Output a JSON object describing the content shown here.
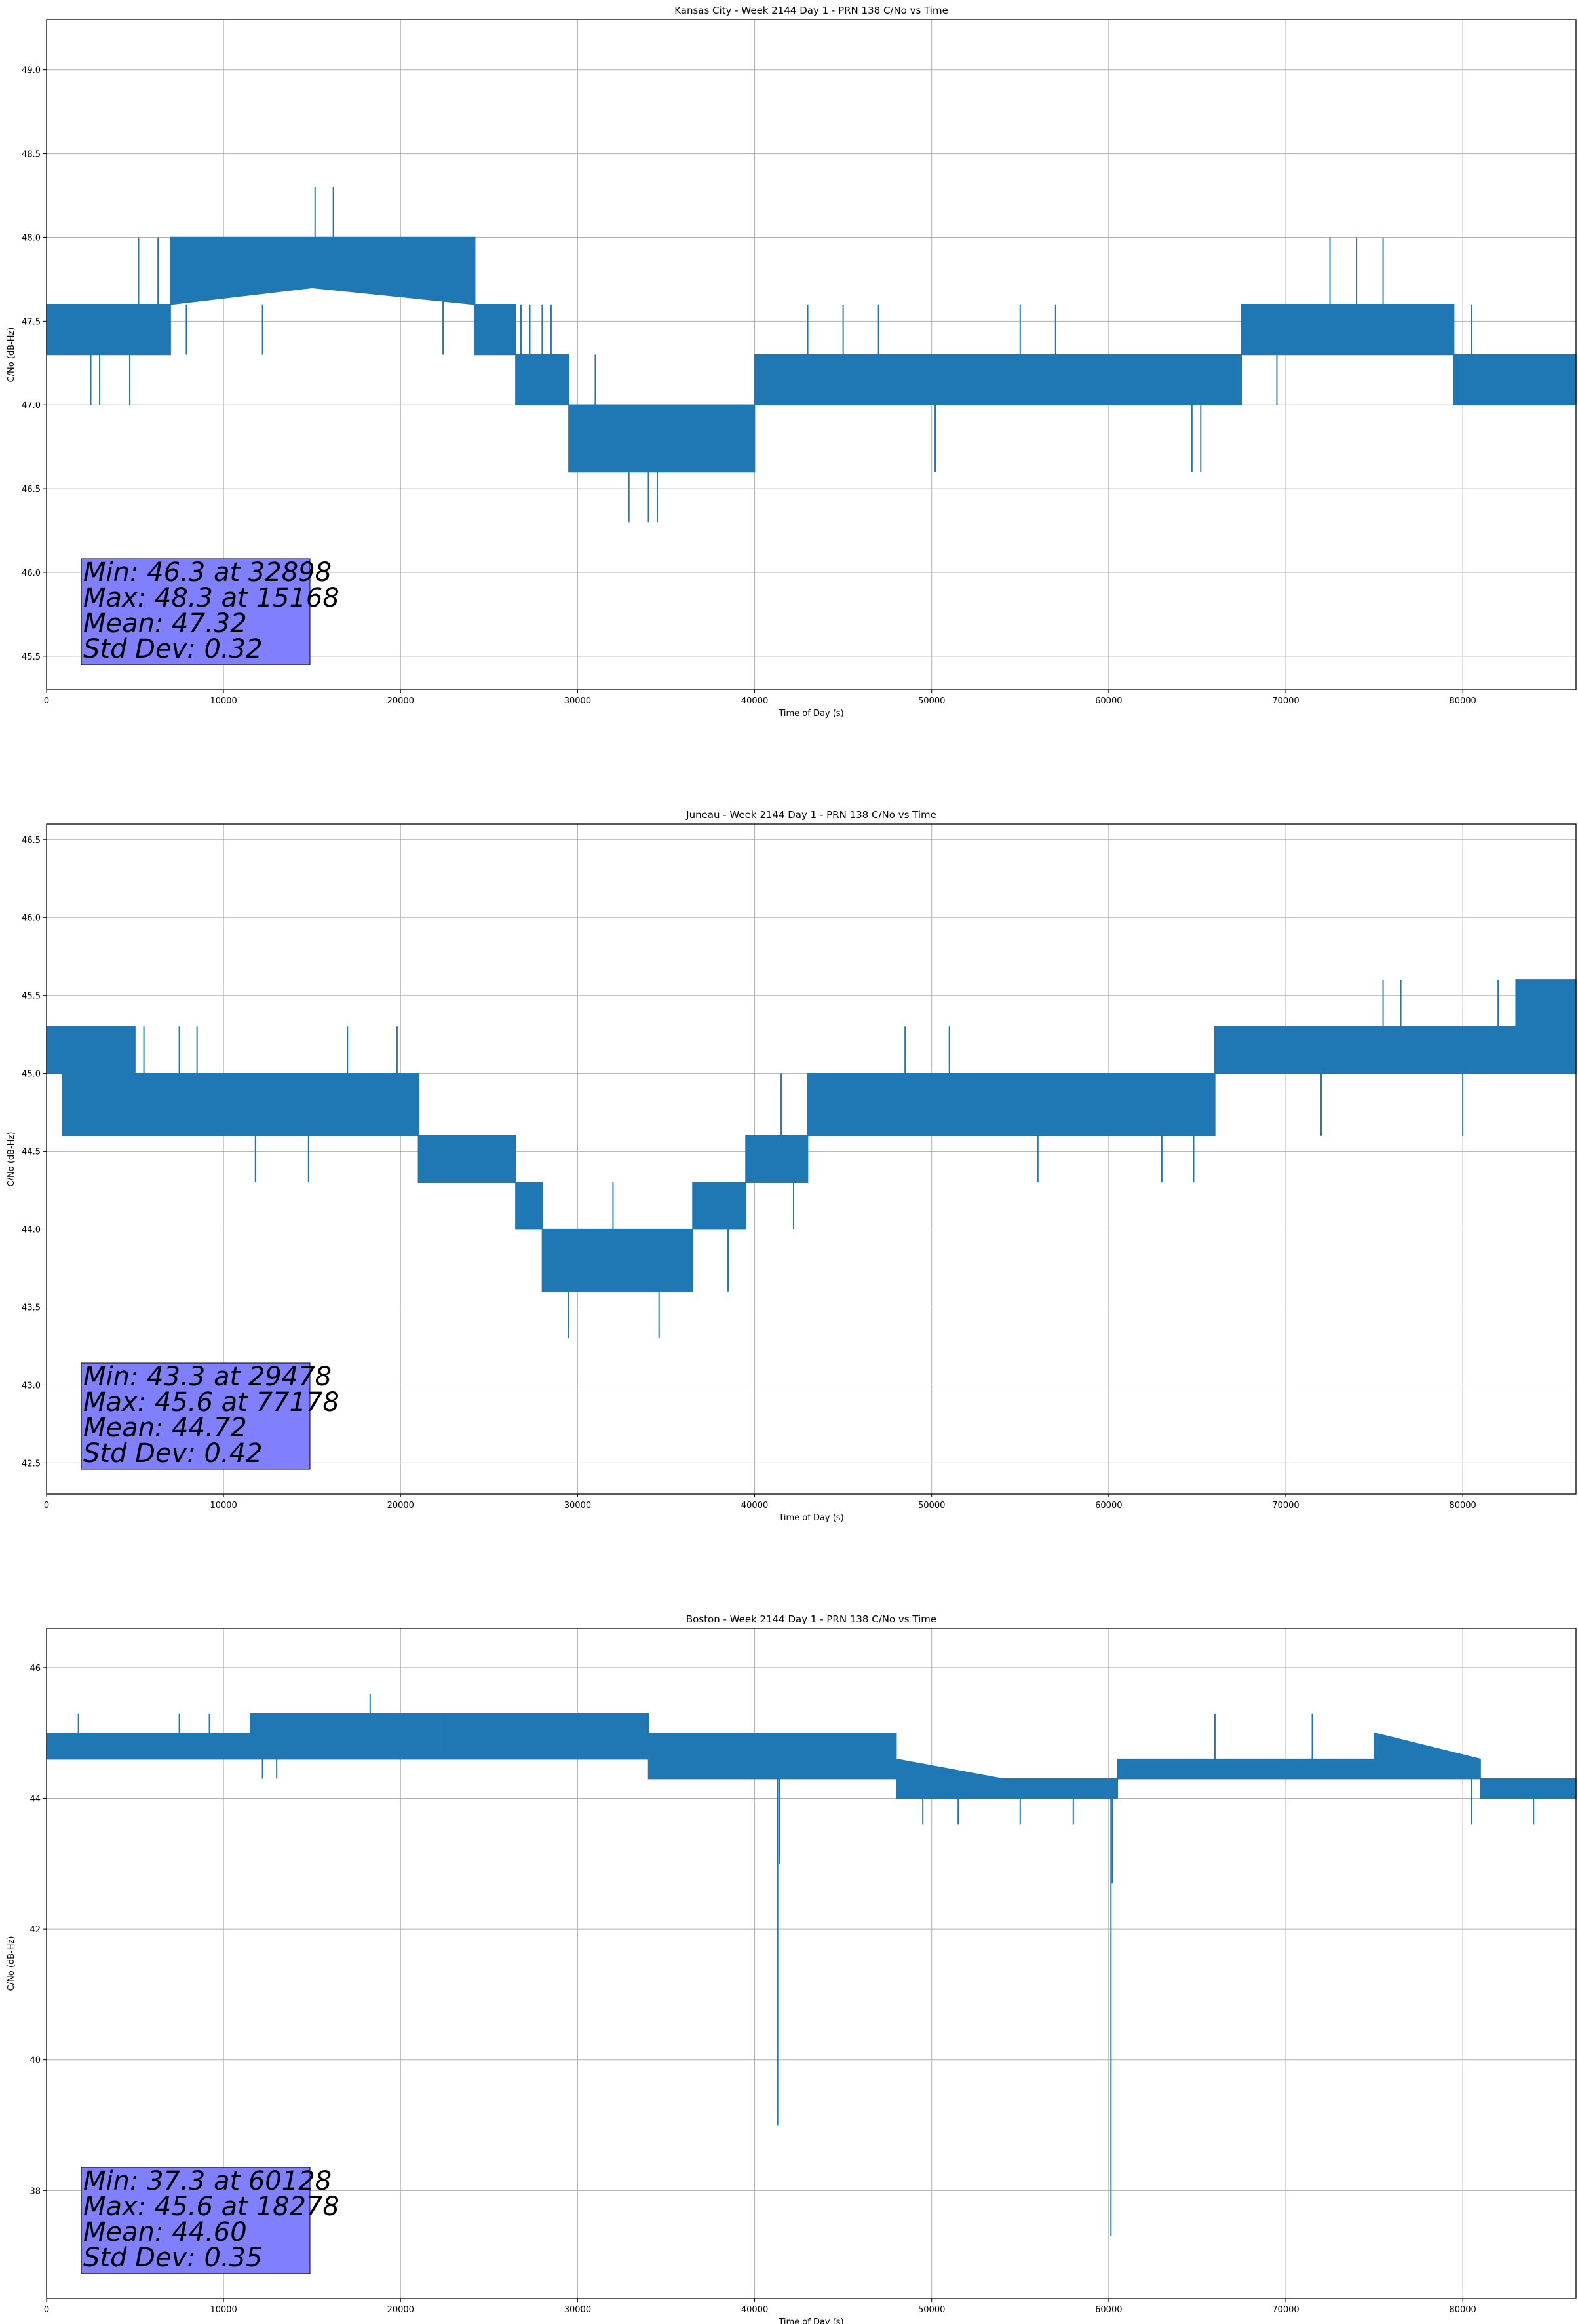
{
  "colors": {
    "series": "#1f77b4",
    "stats_box": "#8080ff",
    "grid": "#b0b0b0"
  },
  "chart_data": [
    {
      "type": "line",
      "title": "Kansas City - Week 2144 Day 1 - PRN 138 C/No vs Time",
      "xlabel": "Time of Day (s)",
      "ylabel": "C/No (dB-Hz)",
      "xlim": [
        0,
        86400
      ],
      "ylim": [
        45.3,
        49.3
      ],
      "xticks": [
        0,
        10000,
        20000,
        30000,
        40000,
        50000,
        60000,
        70000,
        80000
      ],
      "yticks": [
        45.5,
        46.0,
        46.5,
        47.0,
        47.5,
        48.0,
        48.5,
        49.0
      ],
      "ytick_decimals": 1,
      "grid": true,
      "stats": [
        "Min: 46.3 at 32898",
        "Max: 48.3 at 15168",
        "Mean: 47.32",
        "Std Dev: 0.32"
      ],
      "series": [
        {
          "band": [
            [
              0,
              47.3,
              47.6
            ],
            [
              7000,
              47.3,
              47.6
            ],
            [
              7000,
              47.6,
              48.0
            ],
            [
              15000,
              47.7,
              48.0
            ],
            [
              24200,
              47.6,
              48.0
            ],
            [
              24200,
              47.3,
              47.6
            ],
            [
              26500,
              47.3,
              47.6
            ],
            [
              26500,
              47.0,
              47.3
            ],
            [
              29500,
              47.0,
              47.3
            ],
            [
              29500,
              46.6,
              47.0
            ],
            [
              40000,
              46.6,
              47.0
            ],
            [
              40000,
              47.0,
              47.3
            ],
            [
              67500,
              47.0,
              47.3
            ],
            [
              67500,
              47.3,
              47.6
            ],
            [
              79500,
              47.3,
              47.6
            ],
            [
              79500,
              47.0,
              47.3
            ],
            [
              86400,
              47.0,
              47.3
            ]
          ],
          "spikes": [
            [
              7900,
              47.3
            ],
            [
              12200,
              47.3
            ],
            [
              2500,
              47.0
            ],
            [
              3000,
              47.0
            ],
            [
              4700,
              47.0
            ],
            [
              5200,
              48.0
            ],
            [
              6300,
              48.0
            ],
            [
              15168,
              48.3
            ],
            [
              16200,
              48.3
            ],
            [
              22400,
              47.3
            ],
            [
              26800,
              47.6
            ],
            [
              27300,
              47.6
            ],
            [
              28000,
              47.6
            ],
            [
              28500,
              47.6
            ],
            [
              31000,
              47.3
            ],
            [
              32898,
              46.3
            ],
            [
              34000,
              46.3
            ],
            [
              34500,
              46.3
            ],
            [
              37000,
              46.6
            ],
            [
              38000,
              46.6
            ],
            [
              43000,
              47.6
            ],
            [
              45000,
              47.6
            ],
            [
              47000,
              47.6
            ],
            [
              50200,
              46.6
            ],
            [
              55000,
              47.6
            ],
            [
              57000,
              47.6
            ],
            [
              64700,
              46.6
            ],
            [
              65200,
              46.6
            ],
            [
              69500,
              47.0
            ],
            [
              71500,
              47.6
            ],
            [
              72500,
              48.0
            ],
            [
              74000,
              48.0
            ],
            [
              75500,
              48.0
            ],
            [
              76000,
              47.3
            ],
            [
              80500,
              47.6
            ]
          ]
        }
      ]
    },
    {
      "type": "line",
      "title": "Juneau - Week 2144 Day 1 - PRN 138 C/No vs Time",
      "xlabel": "Time of Day (s)",
      "ylabel": "C/No (dB-Hz)",
      "xlim": [
        0,
        86400
      ],
      "ylim": [
        42.3,
        46.6
      ],
      "xticks": [
        0,
        10000,
        20000,
        30000,
        40000,
        50000,
        60000,
        70000,
        80000
      ],
      "yticks": [
        42.5,
        43.0,
        43.5,
        44.0,
        44.5,
        45.0,
        45.5,
        46.0,
        46.5
      ],
      "ytick_decimals": 1,
      "grid": true,
      "stats": [
        "Min: 43.3 at 29478",
        "Max: 45.6 at 77178",
        "Mean: 44.72",
        "Std Dev: 0.42"
      ],
      "series": [
        {
          "band": [
            [
              0,
              45.0,
              45.3
            ],
            [
              900,
              45.0,
              45.3
            ],
            [
              900,
              44.6,
              45.3
            ],
            [
              5000,
              44.6,
              45.3
            ],
            [
              5000,
              44.6,
              45.0
            ],
            [
              21000,
              44.6,
              45.0
            ],
            [
              21000,
              44.3,
              44.6
            ],
            [
              26500,
              44.3,
              44.6
            ],
            [
              26500,
              44.0,
              44.3
            ],
            [
              28000,
              44.0,
              44.3
            ],
            [
              28000,
              43.6,
              44.0
            ],
            [
              36500,
              43.6,
              44.0
            ],
            [
              36500,
              44.0,
              44.3
            ],
            [
              39500,
              44.0,
              44.3
            ],
            [
              39500,
              44.3,
              44.6
            ],
            [
              43000,
              44.3,
              44.6
            ],
            [
              43000,
              44.6,
              45.0
            ],
            [
              66000,
              44.6,
              45.0
            ],
            [
              66000,
              45.0,
              45.3
            ],
            [
              83000,
              45.0,
              45.3
            ],
            [
              83000,
              45.0,
              45.6
            ],
            [
              86400,
              45.0,
              45.6
            ]
          ],
          "spikes": [
            [
              1500,
              45.3
            ],
            [
              3500,
              45.3
            ],
            [
              5500,
              45.3
            ],
            [
              7500,
              45.3
            ],
            [
              8500,
              45.3
            ],
            [
              11800,
              44.3
            ],
            [
              14800,
              44.3
            ],
            [
              17000,
              45.3
            ],
            [
              19800,
              45.3
            ],
            [
              24000,
              44.3
            ],
            [
              29478,
              43.3
            ],
            [
              32000,
              44.3
            ],
            [
              34600,
              43.3
            ],
            [
              38500,
              43.6
            ],
            [
              41500,
              45.0
            ],
            [
              42200,
              44.0
            ],
            [
              48500,
              45.3
            ],
            [
              51000,
              45.3
            ],
            [
              56000,
              44.3
            ],
            [
              63000,
              44.3
            ],
            [
              64800,
              44.3
            ],
            [
              66000,
              45.3
            ],
            [
              70500,
              45.3
            ],
            [
              72000,
              44.6
            ],
            [
              75500,
              45.6
            ],
            [
              76500,
              45.6
            ],
            [
              80000,
              44.6
            ],
            [
              82000,
              45.6
            ],
            [
              84500,
              45.0
            ]
          ]
        }
      ]
    },
    {
      "type": "line",
      "title": "Boston - Week 2144 Day 1 - PRN 138 C/No vs Time",
      "xlabel": "Time of Day (s)",
      "ylabel": "C/No (dB-Hz)",
      "xlim": [
        0,
        86400
      ],
      "ylim": [
        36.35,
        46.6
      ],
      "xticks": [
        0,
        10000,
        20000,
        30000,
        40000,
        50000,
        60000,
        70000,
        80000
      ],
      "yticks": [
        38,
        40,
        42,
        44,
        46
      ],
      "ytick_decimals": 0,
      "grid": true,
      "stats": [
        "Min: 37.3 at 60128",
        "Max: 45.6 at 18278",
        "Mean: 44.60",
        "Std Dev: 0.35"
      ],
      "series": [
        {
          "band": [
            [
              0,
              44.6,
              45.0
            ],
            [
              11500,
              44.6,
              45.0
            ],
            [
              11500,
              44.6,
              45.3
            ],
            [
              34000,
              44.6,
              45.3
            ],
            [
              34000,
              44.3,
              45.0
            ],
            [
              48000,
              44.3,
              45.0
            ],
            [
              48000,
              44.0,
              44.6
            ],
            [
              54000,
              44.0,
              44.3
            ],
            [
              60500,
              44.0,
              44.3
            ],
            [
              60500,
              44.3,
              44.6
            ],
            [
              75000,
              44.3,
              44.6
            ],
            [
              75000,
              44.3,
              45.0
            ],
            [
              81000,
              44.3,
              44.6
            ],
            [
              81000,
              44.0,
              44.3
            ],
            [
              86400,
              44.0,
              44.3
            ]
          ],
          "spikes": [
            [
              1800,
              45.3
            ],
            [
              7500,
              45.3
            ],
            [
              9200,
              45.3
            ],
            [
              12200,
              44.3
            ],
            [
              13000,
              44.3
            ],
            [
              18278,
              45.6
            ],
            [
              20500,
              45.3
            ],
            [
              22500,
              45.3
            ],
            [
              27000,
              45.3
            ],
            [
              32000,
              45.3
            ],
            [
              41300,
              39.0
            ],
            [
              41400,
              43.0
            ],
            [
              49500,
              43.6
            ],
            [
              51500,
              43.6
            ],
            [
              55000,
              43.6
            ],
            [
              58000,
              43.6
            ],
            [
              60128,
              37.3
            ],
            [
              60200,
              42.7
            ],
            [
              66000,
              45.3
            ],
            [
              71500,
              45.3
            ],
            [
              80500,
              43.6
            ],
            [
              84000,
              43.6
            ]
          ]
        }
      ]
    }
  ]
}
